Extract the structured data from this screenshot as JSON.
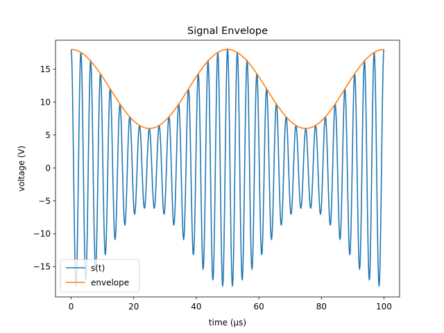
{
  "chart_data": {
    "type": "line",
    "title": "Signal Envelope",
    "xlabel": "time (μs)",
    "ylabel": "voltage (V)",
    "xlim": [
      -5,
      105
    ],
    "ylim": [
      -19.6,
      19.4
    ],
    "x_ticks": [
      0,
      20,
      40,
      60,
      80,
      100
    ],
    "x_tick_labels": [
      "0",
      "20",
      "40",
      "60",
      "80",
      "100"
    ],
    "y_ticks": [
      -15,
      -10,
      -5,
      0,
      5,
      10,
      15
    ],
    "y_tick_labels": [
      "−15",
      "−10",
      "−5",
      "0",
      "5",
      "10",
      "15"
    ],
    "grid": false,
    "legend": {
      "position": "lower-left",
      "entries": [
        "s(t)",
        "envelope"
      ]
    },
    "series": [
      {
        "name": "s(t)",
        "color": "#1f77b4",
        "model": "carrier",
        "x_range": [
          0,
          100
        ],
        "envelope_mean": 12,
        "envelope_amplitude": 6,
        "envelope_period": 50,
        "carrier_period": 3.125
      },
      {
        "name": "envelope",
        "color": "#ff7f0e",
        "model": "envelope",
        "x_range": [
          0,
          100
        ],
        "x": [
          0,
          12.5,
          25,
          37.5,
          50,
          62.5,
          75,
          87.5,
          100
        ],
        "y": [
          18,
          12,
          6,
          12,
          18,
          12,
          6,
          12,
          18
        ]
      }
    ]
  }
}
